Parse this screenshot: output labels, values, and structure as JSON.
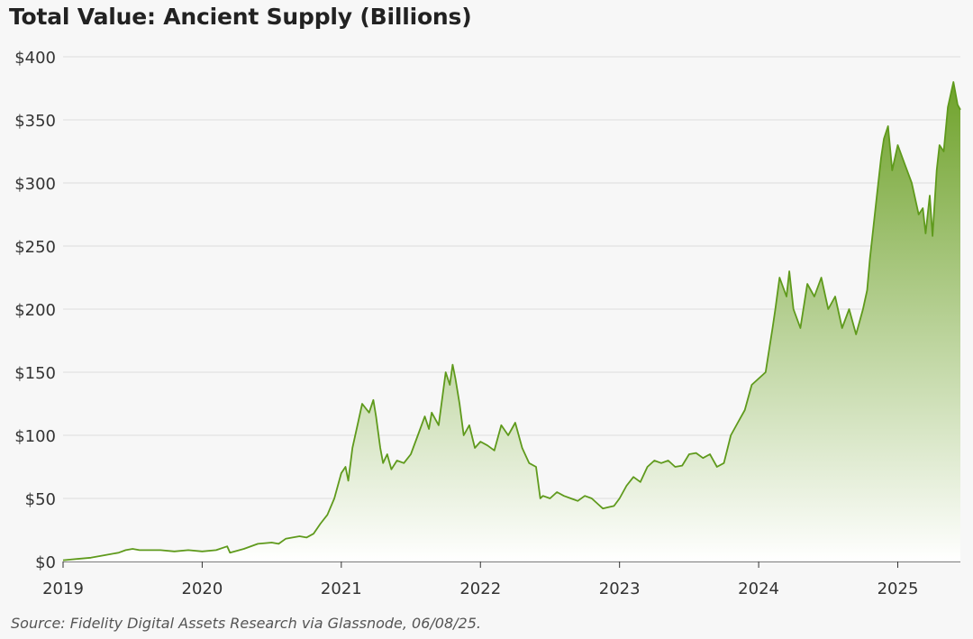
{
  "header": {
    "title": "Total Value: Ancient Supply (Billions)"
  },
  "footer": {
    "source": "Source: Fidelity Digital Assets Research via Glassnode, 06/08/25."
  },
  "colors": {
    "line": "#5f9a1c",
    "fill_top": "#6fa22b",
    "fill_bottom": "#ffffff",
    "grid": "#dcdcdc",
    "axis": "#333333"
  },
  "chart_data": {
    "type": "area",
    "title": "Total Value: Ancient Supply (Billions)",
    "xlabel": "",
    "ylabel": "",
    "y_unit": "Billions USD",
    "xlim": [
      2019.0,
      2025.45
    ],
    "ylim": [
      0,
      400
    ],
    "y_ticks": [
      0,
      50,
      100,
      150,
      200,
      250,
      300,
      350,
      400
    ],
    "y_tick_labels": [
      "$0",
      "$50",
      "$100",
      "$150",
      "$200",
      "$250",
      "$300",
      "$350",
      "$400"
    ],
    "x_ticks": [
      2019,
      2020,
      2021,
      2022,
      2023,
      2024,
      2025
    ],
    "x_tick_labels": [
      "2019",
      "2020",
      "2021",
      "2022",
      "2023",
      "2024",
      "2025"
    ],
    "grid": true,
    "series": [
      {
        "values_x": [
          2019.0,
          2019.1,
          2019.2,
          2019.3,
          2019.4,
          2019.45,
          2019.5,
          2019.55,
          2019.6,
          2019.7,
          2019.8,
          2019.9,
          2020.0,
          2020.1,
          2020.18,
          2020.2,
          2020.3,
          2020.4,
          2020.5,
          2020.55,
          2020.6,
          2020.7,
          2020.75,
          2020.8,
          2020.85,
          2020.9,
          2020.95,
          2021.0,
          2021.03,
          2021.05,
          2021.08,
          2021.12,
          2021.15,
          2021.2,
          2021.23,
          2021.25,
          2021.28,
          2021.3,
          2021.33,
          2021.36,
          2021.4,
          2021.45,
          2021.5,
          2021.55,
          2021.6,
          2021.63,
          2021.65,
          2021.7,
          2021.75,
          2021.78,
          2021.8,
          2021.82,
          2021.85,
          2021.88,
          2021.92,
          2021.96,
          2022.0,
          2022.05,
          2022.1,
          2022.15,
          2022.2,
          2022.25,
          2022.3,
          2022.35,
          2022.4,
          2022.43,
          2022.45,
          2022.5,
          2022.55,
          2022.6,
          2022.65,
          2022.7,
          2022.75,
          2022.8,
          2022.85,
          2022.88,
          2022.92,
          2022.96,
          2023.0,
          2023.05,
          2023.1,
          2023.15,
          2023.2,
          2023.25,
          2023.3,
          2023.35,
          2023.4,
          2023.45,
          2023.5,
          2023.55,
          2023.6,
          2023.65,
          2023.7,
          2023.75,
          2023.8,
          2023.85,
          2023.9,
          2023.95,
          2024.0,
          2024.05,
          2024.1,
          2024.12,
          2024.15,
          2024.2,
          2024.22,
          2024.25,
          2024.3,
          2024.35,
          2024.4,
          2024.45,
          2024.5,
          2024.55,
          2024.6,
          2024.65,
          2024.7,
          2024.75,
          2024.78,
          2024.8,
          2024.85,
          2024.88,
          2024.9,
          2024.93,
          2024.96,
          2025.0,
          2025.05,
          2025.1,
          2025.15,
          2025.18,
          2025.2,
          2025.23,
          2025.25,
          2025.28,
          2025.3,
          2025.33,
          2025.36,
          2025.38,
          2025.4,
          2025.43,
          2025.45
        ],
        "values_y": [
          1,
          2,
          3,
          5,
          7,
          9,
          10,
          9,
          9,
          9,
          8,
          9,
          8,
          9,
          12,
          7,
          10,
          14,
          15,
          14,
          18,
          20,
          19,
          22,
          30,
          37,
          50,
          70,
          75,
          64,
          90,
          110,
          125,
          118,
          128,
          115,
          90,
          78,
          85,
          73,
          80,
          78,
          85,
          100,
          115,
          105,
          118,
          108,
          150,
          140,
          156,
          145,
          125,
          100,
          108,
          90,
          95,
          92,
          88,
          108,
          100,
          110,
          90,
          78,
          75,
          50,
          52,
          50,
          55,
          52,
          50,
          48,
          52,
          50,
          45,
          42,
          43,
          44,
          50,
          60,
          67,
          63,
          75,
          80,
          78,
          80,
          75,
          76,
          85,
          86,
          82,
          85,
          75,
          78,
          100,
          110,
          120,
          140,
          145,
          150,
          185,
          200,
          225,
          210,
          230,
          200,
          185,
          220,
          210,
          225,
          200,
          210,
          185,
          200,
          180,
          200,
          215,
          240,
          290,
          320,
          335,
          345,
          310,
          330,
          315,
          300,
          275,
          280,
          260,
          290,
          258,
          310,
          330,
          325,
          360,
          370,
          380,
          362,
          358
        ]
      }
    ]
  }
}
